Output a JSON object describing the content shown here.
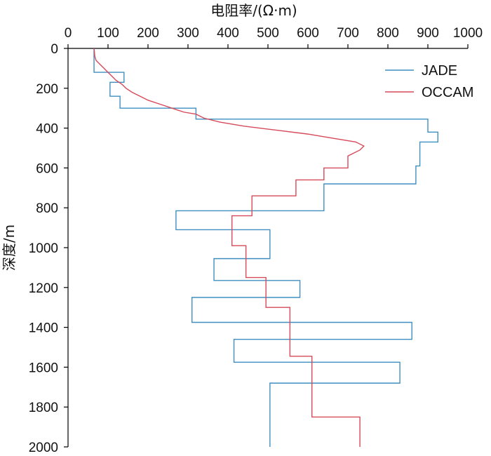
{
  "chart_data": {
    "type": "line",
    "title": "",
    "xlabel": "电阻率/(Ω·m)",
    "ylabel": "深度/m",
    "x_axis_position": "top",
    "y_axis_inverted": true,
    "xlim": [
      0,
      1000
    ],
    "ylim": [
      0,
      2000
    ],
    "xticks": [
      0,
      100,
      200,
      300,
      400,
      500,
      600,
      700,
      800,
      900,
      1000
    ],
    "yticks": [
      0,
      200,
      400,
      600,
      800,
      1000,
      1200,
      1400,
      1600,
      1800,
      2000
    ],
    "grid": false,
    "legend_position": "top-right",
    "series": [
      {
        "name": "JADE",
        "color": "#3f8fc0",
        "points": [
          [
            65,
            0
          ],
          [
            65,
            120
          ],
          [
            140,
            120
          ],
          [
            140,
            170
          ],
          [
            105,
            170
          ],
          [
            105,
            240
          ],
          [
            130,
            240
          ],
          [
            130,
            300
          ],
          [
            320,
            300
          ],
          [
            320,
            355
          ],
          [
            900,
            355
          ],
          [
            900,
            420
          ],
          [
            925,
            420
          ],
          [
            925,
            470
          ],
          [
            880,
            470
          ],
          [
            880,
            590
          ],
          [
            870,
            590
          ],
          [
            870,
            680
          ],
          [
            640,
            680
          ],
          [
            640,
            815
          ],
          [
            270,
            815
          ],
          [
            270,
            910
          ],
          [
            505,
            910
          ],
          [
            505,
            1055
          ],
          [
            365,
            1055
          ],
          [
            365,
            1165
          ],
          [
            580,
            1165
          ],
          [
            580,
            1250
          ],
          [
            310,
            1250
          ],
          [
            310,
            1375
          ],
          [
            860,
            1375
          ],
          [
            860,
            1460
          ],
          [
            415,
            1460
          ],
          [
            415,
            1575
          ],
          [
            830,
            1575
          ],
          [
            830,
            1680
          ],
          [
            505,
            1680
          ],
          [
            505,
            2000
          ]
        ]
      },
      {
        "name": "OCCAM",
        "color": "#d64a5a",
        "points": [
          [
            65,
            0
          ],
          [
            67,
            40
          ],
          [
            70,
            60
          ],
          [
            80,
            80
          ],
          [
            90,
            100
          ],
          [
            100,
            120
          ],
          [
            110,
            140
          ],
          [
            120,
            160
          ],
          [
            135,
            180
          ],
          [
            145,
            200
          ],
          [
            160,
            220
          ],
          [
            180,
            240
          ],
          [
            200,
            260
          ],
          [
            230,
            280
          ],
          [
            260,
            300
          ],
          [
            290,
            320
          ],
          [
            320,
            330
          ],
          [
            340,
            350
          ],
          [
            380,
            370
          ],
          [
            440,
            390
          ],
          [
            520,
            410
          ],
          [
            600,
            430
          ],
          [
            660,
            450
          ],
          [
            720,
            470
          ],
          [
            740,
            490
          ],
          [
            730,
            510
          ],
          [
            700,
            540
          ],
          [
            700,
            600
          ],
          [
            640,
            600
          ],
          [
            640,
            660
          ],
          [
            570,
            660
          ],
          [
            570,
            740
          ],
          [
            460,
            740
          ],
          [
            460,
            840
          ],
          [
            410,
            840
          ],
          [
            410,
            990
          ],
          [
            445,
            990
          ],
          [
            445,
            1150
          ],
          [
            495,
            1150
          ],
          [
            495,
            1300
          ],
          [
            555,
            1300
          ],
          [
            555,
            1545
          ],
          [
            610,
            1545
          ],
          [
            610,
            1850
          ],
          [
            730,
            1850
          ],
          [
            730,
            2000
          ]
        ]
      }
    ]
  }
}
